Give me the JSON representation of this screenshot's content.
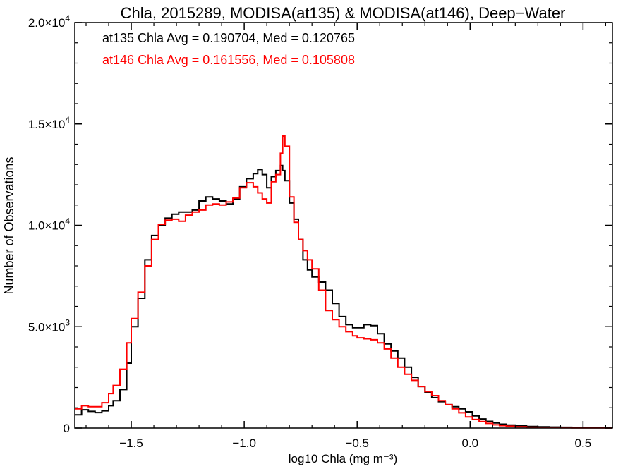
{
  "chart_data": {
    "type": "line",
    "title": "Chla, 2015289, MODISA(at135) & MODISA(at146), Deep−Water",
    "xlabel": "log10 Chla (mg m⁻³)",
    "ylabel": "Number of Observations",
    "xlim": [
      -1.75,
      0.63
    ],
    "ylim": [
      0,
      20000
    ],
    "grid": false,
    "legend_position": "top-left",
    "x_ticks": [
      {
        "value": -1.5,
        "label": "−1.5"
      },
      {
        "value": -1.0,
        "label": "−1.0"
      },
      {
        "value": -0.5,
        "label": "−0.5"
      },
      {
        "value": 0.0,
        "label": "0.0"
      },
      {
        "value": 0.5,
        "label": "0.5"
      }
    ],
    "y_ticks": [
      {
        "value": 0,
        "mant": "0",
        "exp": ""
      },
      {
        "value": 5000,
        "mant": "5.0×10",
        "exp": "3"
      },
      {
        "value": 10000,
        "mant": "1.0×10",
        "exp": "4"
      },
      {
        "value": 15000,
        "mant": "1.5×10",
        "exp": "4"
      },
      {
        "value": 20000,
        "mant": "2.0×10",
        "exp": "4"
      }
    ],
    "series": [
      {
        "name": "at135 Chla Avg = 0.190704, Med = 0.120765",
        "color": "#000000",
        "x": [
          -1.75,
          -1.72,
          -1.69,
          -1.66,
          -1.63,
          -1.6,
          -1.58,
          -1.55,
          -1.52,
          -1.5,
          -1.47,
          -1.44,
          -1.41,
          -1.38,
          -1.35,
          -1.32,
          -1.29,
          -1.26,
          -1.23,
          -1.2,
          -1.17,
          -1.14,
          -1.11,
          -1.08,
          -1.05,
          -1.02,
          -0.99,
          -0.96,
          -0.94,
          -0.92,
          -0.9,
          -0.88,
          -0.86,
          -0.84,
          -0.83,
          -0.82,
          -0.8,
          -0.78,
          -0.76,
          -0.74,
          -0.72,
          -0.7,
          -0.67,
          -0.64,
          -0.61,
          -0.58,
          -0.55,
          -0.52,
          -0.5,
          -0.47,
          -0.44,
          -0.41,
          -0.38,
          -0.35,
          -0.32,
          -0.29,
          -0.26,
          -0.23,
          -0.2,
          -0.17,
          -0.14,
          -0.11,
          -0.08,
          -0.05,
          -0.02,
          0.01,
          0.04,
          0.07,
          0.1,
          0.13,
          0.16,
          0.2,
          0.25,
          0.3,
          0.35,
          0.4,
          0.45,
          0.5,
          0.55,
          0.6,
          0.63
        ],
        "y": [
          650,
          900,
          820,
          760,
          850,
          1100,
          1350,
          1900,
          3200,
          5000,
          6400,
          8300,
          9500,
          10000,
          10350,
          10550,
          10650,
          10650,
          10750,
          11200,
          11400,
          11300,
          11200,
          11050,
          11300,
          11900,
          12300,
          12550,
          12750,
          12500,
          11850,
          12400,
          12700,
          12950,
          12700,
          12200,
          11100,
          10300,
          9300,
          8300,
          7800,
          7450,
          7200,
          6800,
          6150,
          5500,
          5100,
          4950,
          4950,
          5100,
          5050,
          4650,
          4150,
          3800,
          3450,
          3000,
          2500,
          2050,
          1750,
          1500,
          1300,
          1150,
          1050,
          950,
          800,
          600,
          450,
          330,
          250,
          190,
          150,
          110,
          80,
          60,
          50,
          40,
          30,
          25,
          20,
          15,
          10
        ]
      },
      {
        "name": "at146 Chla Avg = 0.161556, Med = 0.105808",
        "color": "#ff0000",
        "x": [
          -1.75,
          -1.72,
          -1.69,
          -1.66,
          -1.63,
          -1.6,
          -1.58,
          -1.55,
          -1.52,
          -1.5,
          -1.47,
          -1.44,
          -1.41,
          -1.38,
          -1.35,
          -1.32,
          -1.29,
          -1.26,
          -1.23,
          -1.2,
          -1.17,
          -1.14,
          -1.11,
          -1.08,
          -1.05,
          -1.02,
          -0.99,
          -0.96,
          -0.94,
          -0.92,
          -0.9,
          -0.88,
          -0.86,
          -0.84,
          -0.83,
          -0.82,
          -0.8,
          -0.78,
          -0.76,
          -0.74,
          -0.72,
          -0.7,
          -0.67,
          -0.64,
          -0.61,
          -0.58,
          -0.55,
          -0.52,
          -0.5,
          -0.47,
          -0.44,
          -0.41,
          -0.38,
          -0.35,
          -0.32,
          -0.29,
          -0.26,
          -0.23,
          -0.2,
          -0.17,
          -0.14,
          -0.11,
          -0.08,
          -0.05,
          -0.02,
          0.01,
          0.04,
          0.07,
          0.1,
          0.13,
          0.16,
          0.2,
          0.25,
          0.3,
          0.35,
          0.4,
          0.45,
          0.5,
          0.55,
          0.6,
          0.63
        ],
        "y": [
          950,
          1100,
          1050,
          1050,
          1250,
          1700,
          2100,
          2900,
          4200,
          5400,
          6700,
          8000,
          9300,
          10050,
          10250,
          10300,
          10200,
          10500,
          10650,
          10750,
          11000,
          11050,
          11000,
          11150,
          11350,
          11850,
          12100,
          11900,
          11600,
          11300,
          11100,
          12150,
          12500,
          13550,
          14400,
          13900,
          11400,
          10150,
          9300,
          8750,
          8300,
          7850,
          6800,
          5800,
          5350,
          5000,
          4750,
          4550,
          4450,
          4400,
          4350,
          4200,
          3900,
          3450,
          3000,
          2650,
          2350,
          2050,
          1800,
          1600,
          1350,
          1150,
          950,
          750,
          550,
          420,
          320,
          230,
          160,
          120,
          90,
          60,
          40,
          30,
          20,
          15,
          12,
          10,
          8,
          5,
          3
        ]
      }
    ]
  }
}
